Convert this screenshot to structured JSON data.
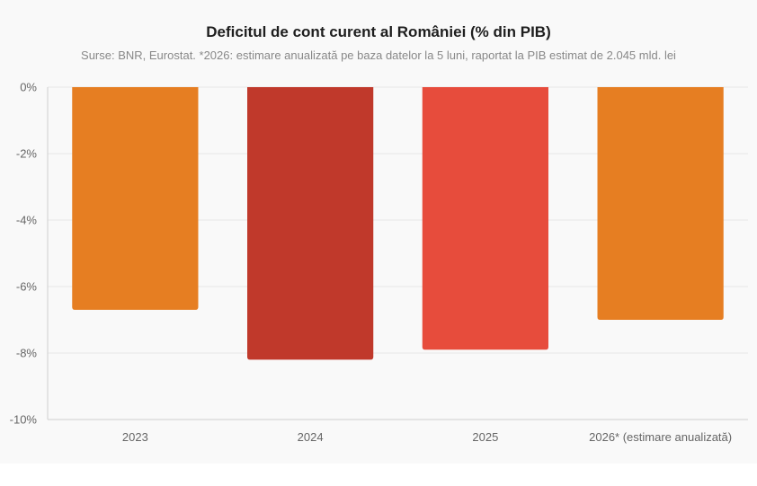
{
  "chart_data": {
    "type": "bar",
    "title": "Deficitul de cont curent al României (% din PIB)",
    "subtitle": "Surse: BNR, Eurostat. *2026: estimare anualizată pe baza datelor la 5 luni, raportat la PIB estimat de 2.045 mld. lei",
    "categories": [
      "2023",
      "2024",
      "2025",
      "2026* (estimare anualizată)"
    ],
    "values": [
      -6.7,
      -8.2,
      -7.9,
      -7.0
    ],
    "bar_colors": [
      "#e67e22",
      "#c0392b",
      "#e74c3c",
      "#e67e22"
    ],
    "ylim": [
      -10,
      0
    ],
    "yticks": [
      0,
      -2,
      -4,
      -6,
      -8,
      -10
    ],
    "ytick_labels": [
      "0%",
      "-2%",
      "-4%",
      "-6%",
      "-8%",
      "-10%"
    ],
    "xlabel": "",
    "ylabel": "",
    "grid": true,
    "legend": "none"
  }
}
